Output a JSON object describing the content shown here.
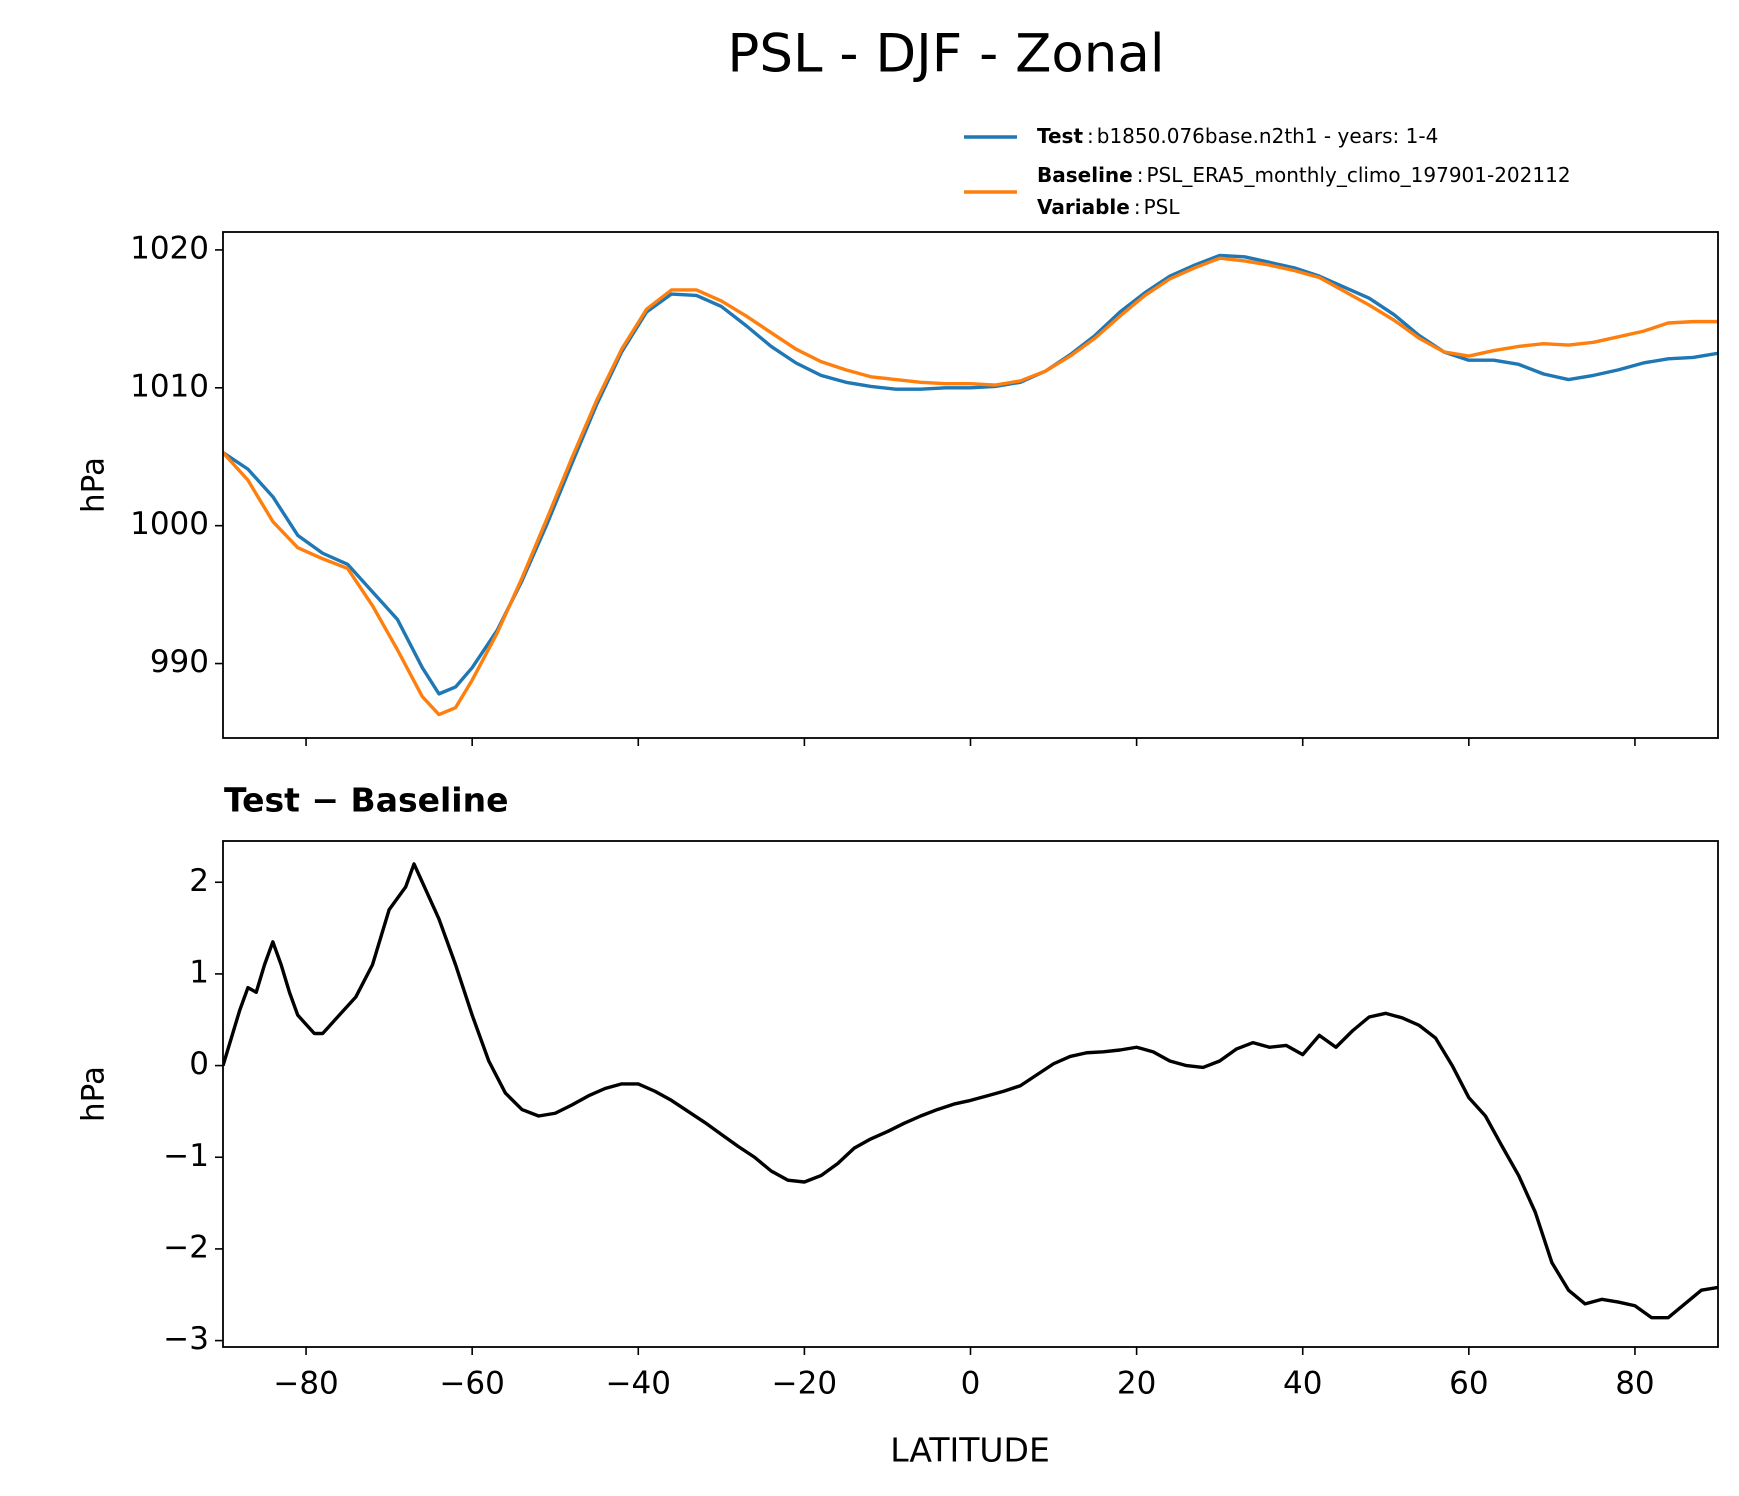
{
  "chart_data": [
    {
      "type": "line",
      "title": "PSL - DJF - Zonal",
      "ylabel": "hPa",
      "x": [
        -90,
        -87,
        -84,
        -81,
        -78,
        -75,
        -72,
        -69,
        -66,
        -64,
        -62,
        -60,
        -57,
        -54,
        -51,
        -48,
        -45,
        -42,
        -39,
        -36,
        -33,
        -30,
        -27,
        -24,
        -21,
        -18,
        -15,
        -12,
        -9,
        -6,
        -3,
        0,
        3,
        6,
        9,
        12,
        15,
        18,
        21,
        24,
        27,
        30,
        33,
        36,
        39,
        42,
        45,
        48,
        51,
        54,
        57,
        60,
        63,
        66,
        69,
        72,
        75,
        78,
        81,
        84,
        87,
        90
      ],
      "series": [
        {
          "name": "Test",
          "text": "b1850.076base.n2th1 - years: 1-4",
          "color": "#1f77b4",
          "values": [
            1005.3,
            1004.1,
            1002.1,
            999.3,
            998.0,
            997.2,
            995.2,
            993.2,
            989.7,
            987.8,
            988.3,
            989.7,
            992.4,
            996.0,
            1000.1,
            1004.5,
            1008.8,
            1012.6,
            1015.5,
            1016.8,
            1016.7,
            1015.9,
            1014.5,
            1013.0,
            1011.8,
            1010.9,
            1010.4,
            1010.1,
            1009.9,
            1009.9,
            1010.0,
            1010.0,
            1010.1,
            1010.4,
            1011.2,
            1012.4,
            1013.8,
            1015.5,
            1016.9,
            1018.1,
            1018.9,
            1019.6,
            1019.5,
            1019.1,
            1018.7,
            1018.1,
            1017.3,
            1016.5,
            1015.3,
            1013.8,
            1012.6,
            1012.0,
            1012.0,
            1011.7,
            1011.0,
            1010.6,
            1010.9,
            1011.3,
            1011.8,
            1012.1,
            1012.2,
            1012.5
          ]
        },
        {
          "name": "Baseline",
          "text": "PSL_ERA5_monthly_climo_197901-202112",
          "color": "#ff7f0e",
          "values": [
            1005.3,
            1003.3,
            1000.3,
            998.4,
            997.6,
            996.9,
            994.2,
            991.0,
            987.6,
            986.3,
            986.8,
            988.8,
            992.2,
            996.2,
            1000.5,
            1004.9,
            1009.1,
            1012.8,
            1015.7,
            1017.1,
            1017.1,
            1016.3,
            1015.2,
            1014.0,
            1012.8,
            1011.9,
            1011.3,
            1010.8,
            1010.6,
            1010.4,
            1010.3,
            1010.3,
            1010.2,
            1010.5,
            1011.2,
            1012.3,
            1013.6,
            1015.2,
            1016.7,
            1017.9,
            1018.7,
            1019.4,
            1019.2,
            1018.9,
            1018.5,
            1018.0,
            1017.0,
            1016.0,
            1014.9,
            1013.6,
            1012.6,
            1012.3,
            1012.7,
            1013.0,
            1013.2,
            1013.1,
            1013.3,
            1013.7,
            1014.1,
            1014.7,
            1014.8,
            1014.8
          ]
        }
      ],
      "legend_separator": ":",
      "legend_extra": {
        "name": "Variable",
        "text": "PSL"
      },
      "xlim": [
        -90,
        90
      ],
      "ylim": [
        984.6,
        1021.3
      ],
      "xticks": [
        -80,
        -60,
        -40,
        -20,
        0,
        20,
        40,
        60,
        80
      ],
      "show_xtick_labels": false,
      "yticks": [
        990,
        1000,
        1010,
        1020
      ]
    },
    {
      "type": "line",
      "title": "Test − Baseline",
      "ylabel": "hPa",
      "xlabel": "LATITUDE",
      "color": "#000000",
      "x": [
        -90,
        -89,
        -88,
        -87,
        -86,
        -85,
        -84,
        -83,
        -82,
        -81,
        -80,
        -79,
        -78,
        -76,
        -74,
        -72,
        -70,
        -68,
        -67,
        -66,
        -64,
        -62,
        -60,
        -58,
        -56,
        -54,
        -52,
        -50,
        -48,
        -46,
        -44,
        -42,
        -40,
        -38,
        -36,
        -34,
        -32,
        -30,
        -28,
        -26,
        -24,
        -22,
        -20,
        -18,
        -16,
        -14,
        -12,
        -10,
        -8,
        -6,
        -4,
        -2,
        0,
        2,
        4,
        6,
        8,
        10,
        12,
        14,
        16,
        18,
        20,
        22,
        24,
        26,
        28,
        30,
        32,
        34,
        36,
        38,
        40,
        42,
        44,
        46,
        48,
        50,
        52,
        54,
        56,
        58,
        60,
        62,
        64,
        66,
        68,
        70,
        72,
        74,
        76,
        78,
        80,
        82,
        84,
        86,
        88,
        90
      ],
      "values": [
        0,
        0.3,
        0.6,
        0.85,
        0.8,
        1.1,
        1.35,
        1.1,
        0.8,
        0.55,
        0.45,
        0.35,
        0.35,
        0.55,
        0.75,
        1.1,
        1.7,
        1.95,
        2.2,
        2.0,
        1.6,
        1.1,
        0.55,
        0.05,
        -0.3,
        -0.48,
        -0.55,
        -0.52,
        -0.43,
        -0.33,
        -0.25,
        -0.2,
        -0.2,
        -0.28,
        -0.38,
        -0.5,
        -0.62,
        -0.75,
        -0.88,
        -1.0,
        -1.15,
        -1.25,
        -1.27,
        -1.2,
        -1.07,
        -0.9,
        -0.8,
        -0.72,
        -0.63,
        -0.55,
        -0.48,
        -0.42,
        -0.38,
        -0.33,
        -0.28,
        -0.22,
        -0.1,
        0.02,
        0.1,
        0.14,
        0.15,
        0.17,
        0.2,
        0.15,
        0.05,
        0.0,
        -0.02,
        0.05,
        0.18,
        0.25,
        0.2,
        0.22,
        0.12,
        0.33,
        0.2,
        0.38,
        0.53,
        0.57,
        0.52,
        0.44,
        0.3,
        0.0,
        -0.35,
        -0.55,
        -0.88,
        -1.2,
        -1.6,
        -2.15,
        -2.45,
        -2.6,
        -2.55,
        -2.58,
        -2.62,
        -2.75,
        -2.75,
        -2.6,
        -2.45,
        -2.42
      ],
      "xlim": [
        -90,
        90
      ],
      "ylim": [
        -3.07,
        2.45
      ],
      "xticks": [
        {
          "value": -80,
          "label": "−80"
        },
        {
          "value": -60,
          "label": "−60"
        },
        {
          "value": -40,
          "label": "−40"
        },
        {
          "value": -20,
          "label": "−20"
        },
        0,
        20,
        40,
        60,
        80
      ],
      "show_xtick_labels": true,
      "yticks": [
        {
          "value": -3,
          "label": "−3"
        },
        {
          "value": -2,
          "label": "−2"
        },
        {
          "value": -1,
          "label": "−1"
        },
        0,
        1,
        2
      ]
    }
  ]
}
